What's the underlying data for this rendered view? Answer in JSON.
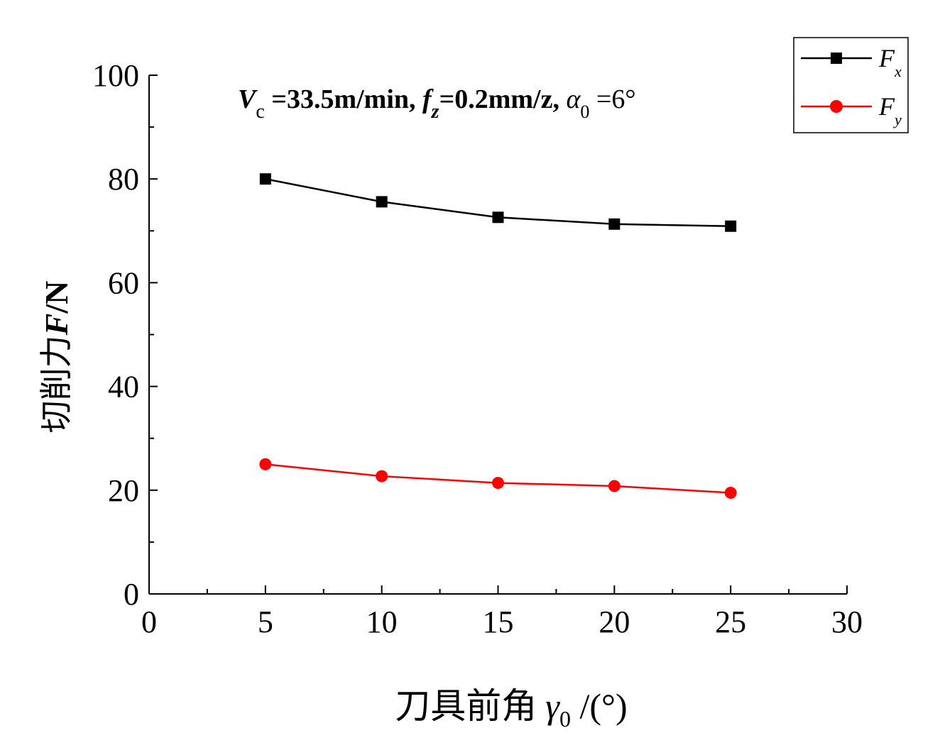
{
  "chart_data": {
    "type": "line",
    "x": [
      5,
      10,
      15,
      20,
      25
    ],
    "xlim": [
      0,
      30
    ],
    "ylim": [
      0,
      100
    ],
    "x_ticks": [
      "0",
      "5",
      "10",
      "15",
      "20",
      "25",
      "30"
    ],
    "y_ticks": [
      "0",
      "20",
      "40",
      "60",
      "80",
      "100"
    ],
    "ylabel": {
      "cn": "切削力",
      "var": "F",
      "unit": "/N"
    },
    "xlabel": {
      "cn": "刀具前角",
      "var": "γ",
      "sub": "0",
      "unit": " /(°)"
    },
    "annotation": {
      "v": "V",
      "v_sub": "c",
      "part1": " =33.5m/min, ",
      "f": "f",
      "f_sub": "z",
      "part2": "=0.2mm/z,  ",
      "alpha": "α",
      "alpha_sub": "0",
      "part3": " =6°"
    },
    "legend_position": "top-right",
    "grid": false,
    "series": [
      {
        "name": "F",
        "name_sub": "x",
        "color": "#000000",
        "marker": "square",
        "values": [
          80.0,
          75.6,
          72.6,
          71.3,
          70.9
        ]
      },
      {
        "name": "F",
        "name_sub": "y",
        "color": "#ff0000",
        "marker": "circle",
        "values": [
          25.0,
          22.7,
          21.4,
          20.8,
          19.5
        ]
      }
    ]
  }
}
